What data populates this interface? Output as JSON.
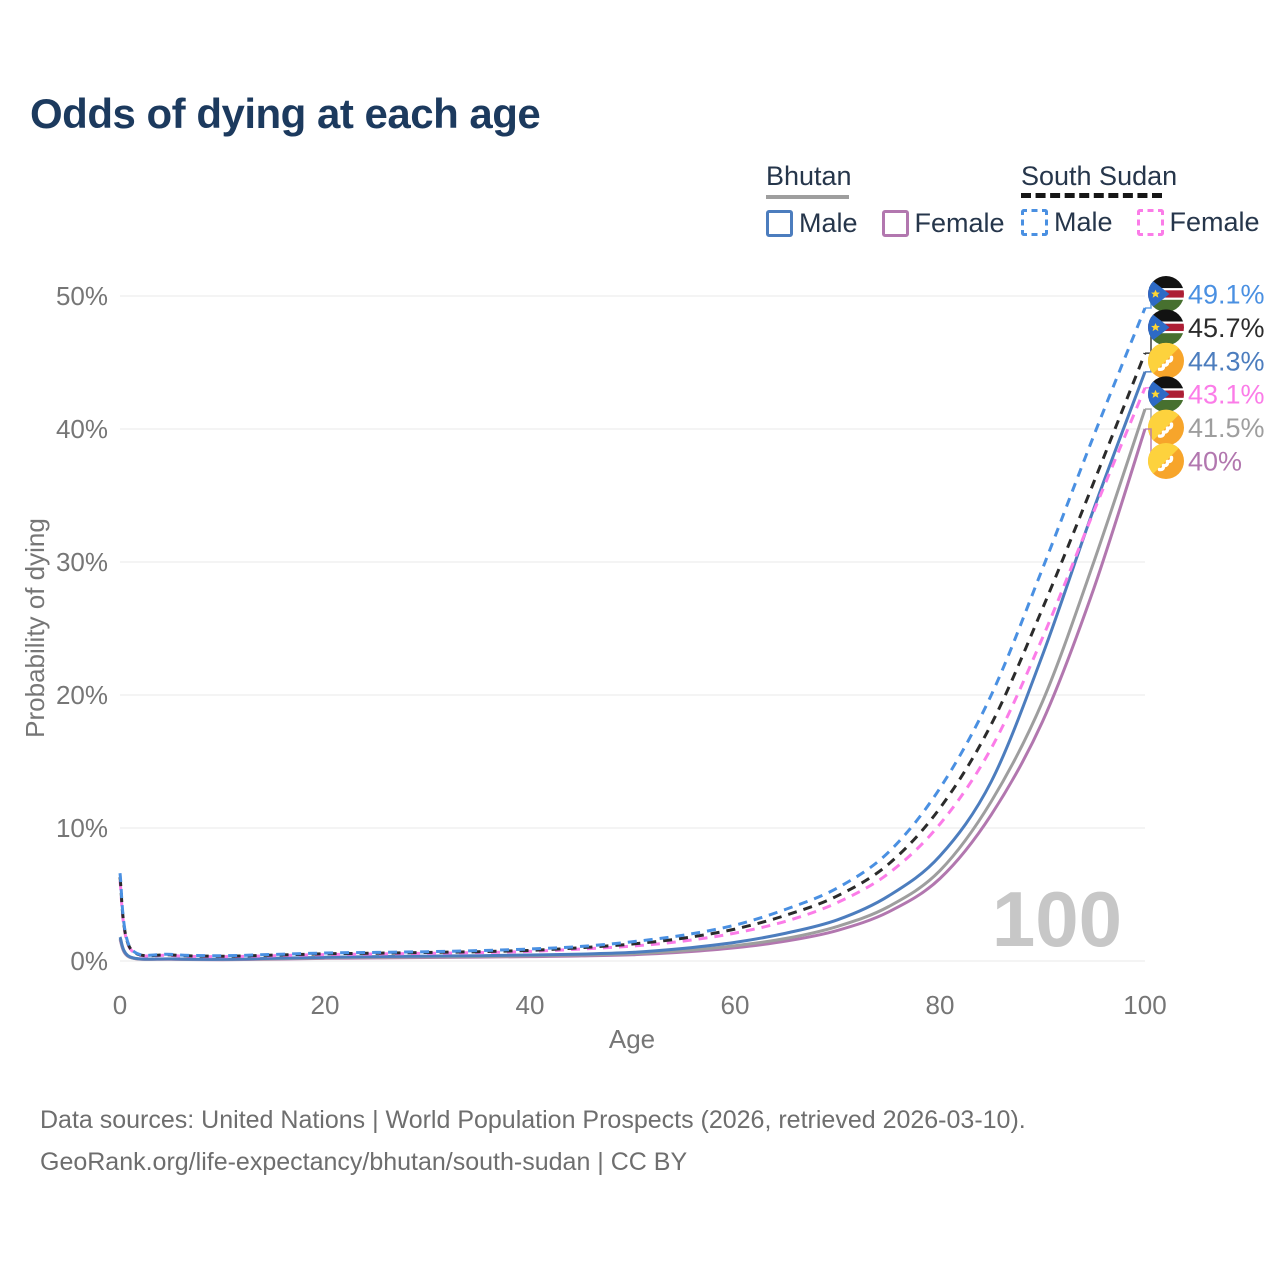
{
  "title": "Odds of dying at each age",
  "legend": {
    "bhutan": {
      "label": "Bhutan",
      "male_label": "Male",
      "female_label": "Female"
    },
    "south_sudan": {
      "label": "South Sudan",
      "male_label": "Male",
      "female_label": "Female"
    }
  },
  "watermark_age": "100",
  "footer": {
    "line1": "Data sources: United Nations | World Population Prospects (2026, retrieved 2026-03-10).",
    "line2": "GeoRank.org/life-expectancy/bhutan/south-sudan | CC BY"
  },
  "chart_data": {
    "type": "line",
    "title": "Odds of dying at each age",
    "xlabel": "Age",
    "ylabel": "Probability of dying",
    "xlim": [
      0,
      100
    ],
    "ylim": [
      0,
      50
    ],
    "grid": "horizontal-only",
    "legend_position": "top-right",
    "xticks": [
      {
        "value": 0,
        "label": "0"
      },
      {
        "value": 20,
        "label": "20"
      },
      {
        "value": 40,
        "label": "40"
      },
      {
        "value": 60,
        "label": "60"
      },
      {
        "value": 80,
        "label": "80"
      },
      {
        "value": 100,
        "label": "100"
      }
    ],
    "yticks": [
      {
        "value": 0,
        "label": "0%"
      },
      {
        "value": 10,
        "label": "10%"
      },
      {
        "value": 20,
        "label": "20%"
      },
      {
        "value": 30,
        "label": "30%"
      },
      {
        "value": 40,
        "label": "40%"
      },
      {
        "value": 50,
        "label": "50%"
      }
    ],
    "x": [
      0,
      1,
      5,
      10,
      15,
      20,
      25,
      30,
      35,
      40,
      45,
      50,
      55,
      60,
      65,
      70,
      75,
      80,
      85,
      90,
      95,
      100
    ],
    "series": [
      {
        "id": "bhutan_female",
        "name": "Bhutan Female",
        "country": "Bhutan",
        "sex": "Female",
        "color": "#b277af",
        "line_style": "solid",
        "flag": "bhutan",
        "end_label": "40%",
        "end_value": 40.0,
        "values": [
          1.6,
          0.26,
          0.13,
          0.1,
          0.14,
          0.2,
          0.23,
          0.26,
          0.29,
          0.33,
          0.38,
          0.47,
          0.68,
          1.0,
          1.5,
          2.3,
          3.7,
          6.2,
          11.0,
          18.0,
          28.0,
          40.0
        ]
      },
      {
        "id": "bhutan_total",
        "name": "Bhutan (both sexes)",
        "country": "Bhutan",
        "sex": "Total",
        "color": "#9e9e9e",
        "line_style": "solid",
        "flag": "bhutan",
        "end_label": "41.5%",
        "end_value": 41.5,
        "values": [
          1.7,
          0.28,
          0.15,
          0.12,
          0.17,
          0.24,
          0.28,
          0.31,
          0.34,
          0.39,
          0.45,
          0.55,
          0.78,
          1.15,
          1.7,
          2.6,
          4.1,
          6.8,
          12.0,
          19.5,
          30.0,
          41.5
        ]
      },
      {
        "id": "bhutan_male",
        "name": "Bhutan Male",
        "country": "Bhutan",
        "sex": "Male",
        "color": "#4c7dbe",
        "line_style": "solid",
        "flag": "bhutan",
        "end_label": "44.3%",
        "end_value": 44.3,
        "values": [
          1.8,
          0.3,
          0.16,
          0.13,
          0.2,
          0.28,
          0.33,
          0.37,
          0.4,
          0.45,
          0.52,
          0.65,
          0.95,
          1.4,
          2.1,
          3.1,
          4.9,
          7.9,
          13.5,
          23.0,
          34.0,
          44.3
        ]
      },
      {
        "id": "ss_female",
        "name": "South Sudan Female",
        "country": "South Sudan",
        "sex": "Female",
        "color": "#fb7ce8",
        "line_style": "dashed",
        "flag": "south-sudan",
        "end_label": "43.1%",
        "end_value": 43.1,
        "values": [
          6.0,
          0.9,
          0.42,
          0.33,
          0.4,
          0.48,
          0.53,
          0.58,
          0.63,
          0.72,
          0.9,
          1.12,
          1.5,
          2.1,
          3.0,
          4.4,
          6.6,
          10.3,
          16.0,
          24.3,
          33.8,
          43.1
        ]
      },
      {
        "id": "ss_total",
        "name": "South Sudan (both sexes)",
        "country": "South Sudan",
        "sex": "Total",
        "color": "#2b2b2b",
        "line_style": "dashed",
        "flag": "south-sudan",
        "end_label": "45.7%",
        "end_value": 45.7,
        "values": [
          6.3,
          0.95,
          0.46,
          0.36,
          0.44,
          0.54,
          0.59,
          0.64,
          0.7,
          0.8,
          1.0,
          1.28,
          1.72,
          2.4,
          3.45,
          4.9,
          7.3,
          11.5,
          17.8,
          26.5,
          36.0,
          45.7
        ]
      },
      {
        "id": "ss_male",
        "name": "South Sudan Male",
        "country": "South Sudan",
        "sex": "Male",
        "color": "#4a90e2",
        "line_style": "dashed",
        "flag": "south-sudan",
        "end_label": "49.1%",
        "end_value": 49.1,
        "values": [
          6.6,
          1.0,
          0.5,
          0.4,
          0.5,
          0.6,
          0.65,
          0.7,
          0.78,
          0.9,
          1.1,
          1.45,
          1.95,
          2.7,
          3.9,
          5.5,
          8.2,
          13.0,
          20.0,
          29.5,
          39.5,
          49.1
        ]
      }
    ]
  }
}
